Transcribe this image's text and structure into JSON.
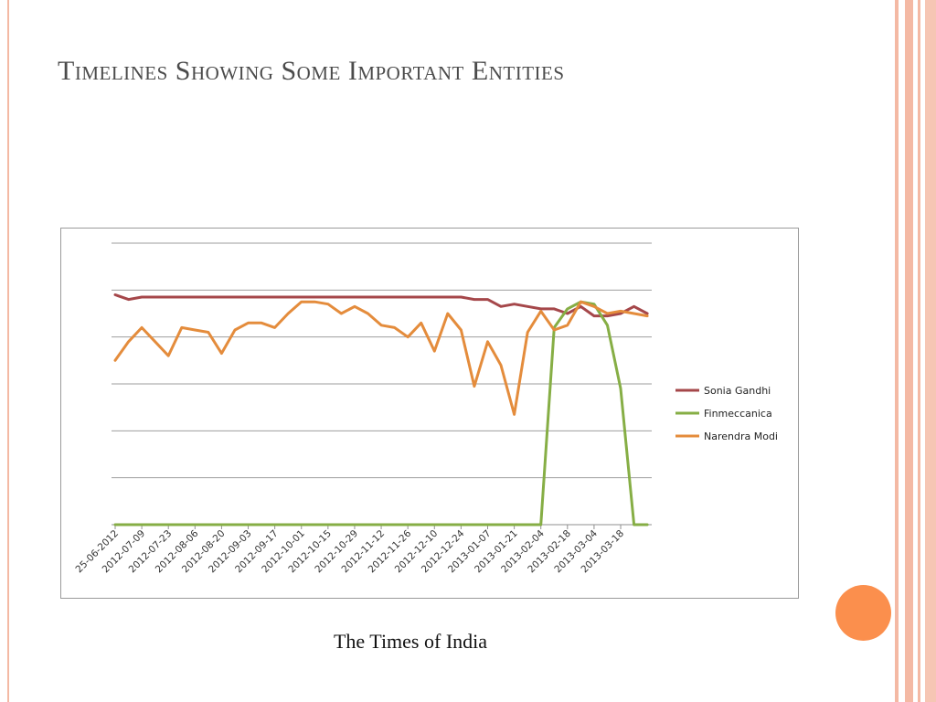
{
  "slide": {
    "title": "Timelines Showing Some Important Entities",
    "caption": "The Times of India"
  },
  "colors": {
    "accent_stripe": "#f4b9a4",
    "accent_stripe_dark": "#ee9d83",
    "dot": "#fb8f4d",
    "title_text": "#4b4b4b"
  },
  "chart_data": {
    "type": "line",
    "title": "",
    "xlabel": "",
    "ylabel": "",
    "ylim": [
      0,
      6
    ],
    "grid": true,
    "legend_position": "right",
    "x_tick_labels": [
      "25-06-2012",
      "2012-07-09",
      "2012-07-23",
      "2012-08-06",
      "2012-08-20",
      "2012-09-03",
      "2012-09-17",
      "2012-10-01",
      "2012-10-15",
      "2012-10-29",
      "2012-11-12",
      "2012-11-26",
      "2012-12-10",
      "2012-12-24",
      "2013-01-07",
      "2013-01-21",
      "2013-02-04",
      "2013-02-18",
      "2013-03-04",
      "2013-03-18"
    ],
    "series": [
      {
        "name": "Sonia Gandhi",
        "color": "#a5474a",
        "values": [
          4.9,
          4.8,
          4.85,
          4.85,
          4.85,
          4.85,
          4.85,
          4.85,
          4.85,
          4.85,
          4.85,
          4.85,
          4.85,
          4.85,
          4.85,
          4.85,
          4.85,
          4.85,
          4.85,
          4.85,
          4.85,
          4.85,
          4.85,
          4.85,
          4.85,
          4.85,
          4.85,
          4.8,
          4.8,
          4.65,
          4.7,
          4.65,
          4.6,
          4.6,
          4.5,
          4.65,
          4.45,
          4.45,
          4.5,
          4.65,
          4.5
        ]
      },
      {
        "name": "Finmeccanica",
        "color": "#86ae45",
        "values": [
          0,
          0,
          0,
          0,
          0,
          0,
          0,
          0,
          0,
          0,
          0,
          0,
          0,
          0,
          0,
          0,
          0,
          0,
          0,
          0,
          0,
          0,
          0,
          0,
          0,
          0,
          0,
          0,
          0,
          0,
          0,
          0,
          0,
          4.2,
          4.6,
          4.75,
          4.7,
          4.25,
          2.9,
          0,
          0
        ]
      },
      {
        "name": "Narendra Modi",
        "color": "#e48c3c",
        "values": [
          3.5,
          3.9,
          4.2,
          3.9,
          3.6,
          4.2,
          4.15,
          4.1,
          3.65,
          4.15,
          4.3,
          4.3,
          4.2,
          4.5,
          4.75,
          4.75,
          4.7,
          4.5,
          4.65,
          4.5,
          4.25,
          4.2,
          4.0,
          4.3,
          3.7,
          4.5,
          4.15,
          2.95,
          3.9,
          3.4,
          2.35,
          4.1,
          4.55,
          4.15,
          4.25,
          4.75,
          4.65,
          4.5,
          4.55,
          4.5,
          4.45
        ]
      }
    ]
  }
}
